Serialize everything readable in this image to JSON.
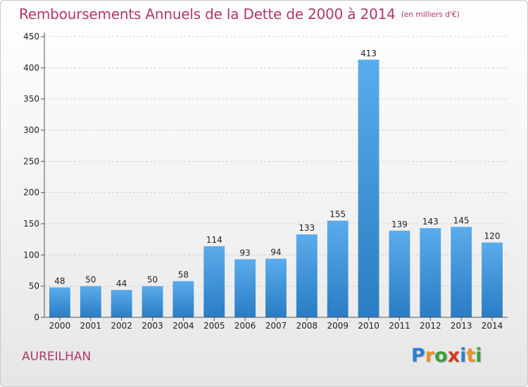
{
  "chart_data": {
    "type": "bar",
    "title": "Remboursements Annuels de la Dette de 2000 à 2014",
    "unit": "(en milliers d'€)",
    "categories": [
      "2000",
      "2001",
      "2002",
      "2003",
      "2004",
      "2005",
      "2006",
      "2007",
      "2008",
      "2009",
      "2010",
      "2011",
      "2012",
      "2013",
      "2014"
    ],
    "values": [
      48,
      50,
      44,
      50,
      58,
      114,
      93,
      94,
      133,
      155,
      413,
      139,
      143,
      145,
      120
    ],
    "ylim": [
      0,
      450
    ],
    "yticks": [
      0,
      50,
      100,
      150,
      200,
      250,
      300,
      350,
      400,
      450
    ],
    "grid": true,
    "bar_color": "#3a8fd9"
  },
  "commune": "AUREILHAN",
  "logo": {
    "letters": [
      "P",
      "r",
      "o",
      "x",
      "i",
      "t",
      "i"
    ],
    "colors": [
      "#2f7fd0",
      "#e8922a",
      "#3aa03a",
      "#d23a2a",
      "#2f7fd0",
      "#e8922a",
      "#3aa03a"
    ]
  }
}
